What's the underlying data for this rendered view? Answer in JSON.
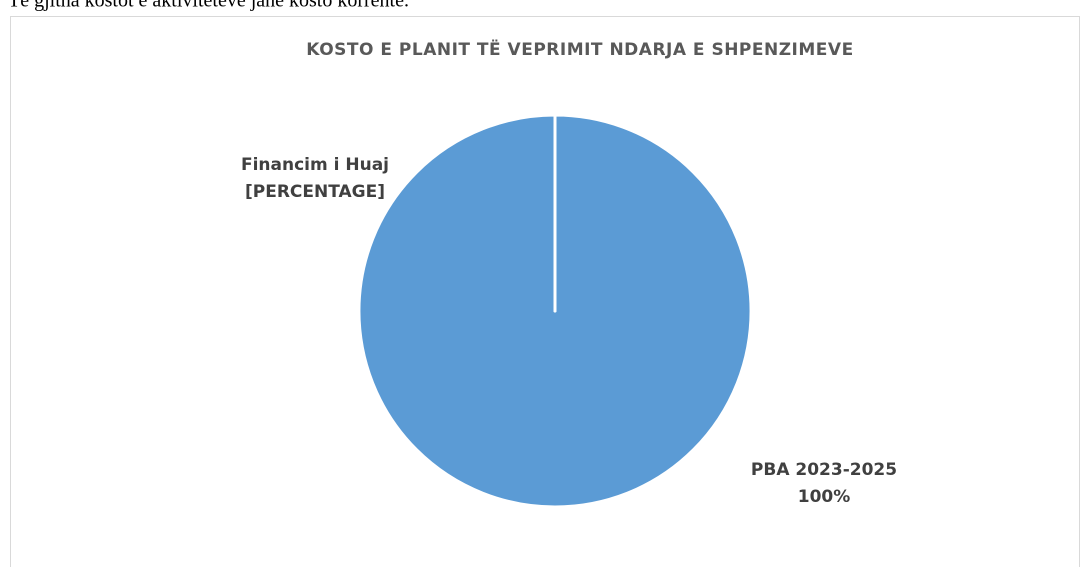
{
  "intro_text": "Të gjitha kostot e aktiviteteve janë kosto korrente.",
  "chart_data": {
    "type": "pie",
    "title": "KOSTO E PLANIT TË VEPRIMIT NDARJA E SHPENZIMEVE",
    "categories": [
      "Financim i Huaj",
      "PBA 2023-2025"
    ],
    "values": [
      0,
      100
    ],
    "value_labels": [
      "[PERCENTAGE]",
      "100%"
    ],
    "colors": [
      "#ed7d31",
      "#5b9bd5"
    ]
  }
}
